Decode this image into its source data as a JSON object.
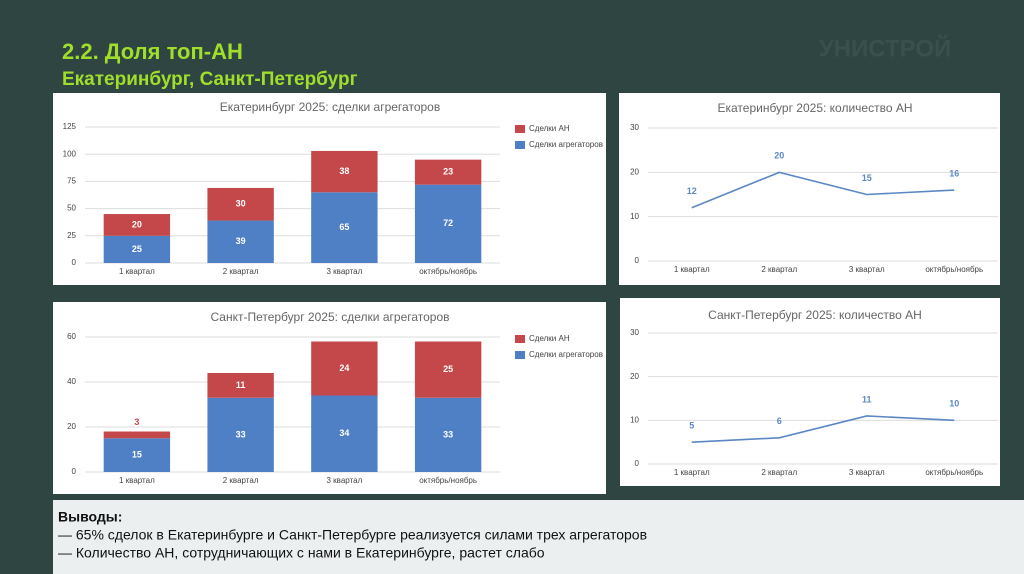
{
  "header": {
    "title": "2.2. Доля топ-АН",
    "subtitle": "Екатеринбург, Санкт-Петербург",
    "logo": "УНИСТРОЙ"
  },
  "chart_data": [
    {
      "type": "bar",
      "stacked": true,
      "title": "Екатеринбург 2025: сделки агрегаторов",
      "categories": [
        "1 квартал",
        "2 квартал",
        "3 квартал",
        "октябрь/ноябрь"
      ],
      "series": [
        {
          "name": "Сделки агрегаторов",
          "color": "#4f80c5",
          "values": [
            25,
            39,
            65,
            72
          ]
        },
        {
          "name": "Сделки АН",
          "color": "#c4484a",
          "values": [
            20,
            30,
            38,
            23
          ]
        }
      ],
      "ylim": [
        0,
        125
      ],
      "yticks": [
        0,
        25,
        50,
        75,
        100,
        125
      ],
      "grid": true,
      "legend": "right"
    },
    {
      "type": "line",
      "title": "Екатеринбург 2025: количество АН",
      "categories": [
        "1 квартал",
        "2 квартал",
        "3 квартал",
        "октябрь/ноябрь"
      ],
      "values": [
        12,
        20,
        15,
        16
      ],
      "color": "#5b87c5",
      "ylim": [
        0,
        30
      ],
      "yticks": [
        0,
        10,
        20,
        30
      ],
      "grid": true
    },
    {
      "type": "bar",
      "stacked": true,
      "title": "Санкт-Петербург 2025: сделки агрегаторов",
      "categories": [
        "1 квартал",
        "2 квартал",
        "3 квартал",
        "октябрь/ноябрь"
      ],
      "series": [
        {
          "name": "Сделки агрегаторов",
          "color": "#4f80c5",
          "values": [
            15,
            33,
            34,
            33
          ]
        },
        {
          "name": "Сделки АН",
          "color": "#c4484a",
          "values": [
            3,
            11,
            24,
            25
          ]
        }
      ],
      "ylim": [
        0,
        60
      ],
      "yticks": [
        0,
        20,
        40,
        60
      ],
      "grid": true,
      "legend": "right"
    },
    {
      "type": "line",
      "title": "Санкт-Петербург 2025: количество АН",
      "categories": [
        "1 квартал",
        "2 квартал",
        "3 квартал",
        "октябрь/ноябрь"
      ],
      "values": [
        5,
        6,
        11,
        10
      ],
      "color": "#5b87c5",
      "ylim": [
        0,
        30
      ],
      "yticks": [
        0,
        10,
        20,
        30
      ],
      "grid": true
    }
  ],
  "conclusions": {
    "heading": "Выводы:",
    "items": [
      "— 65% сделок в Екатеринбурге и Санкт-Петербурге реализуется силами трех агрегаторов",
      "— Количество АН, сотрудничающих с нами в Екатеринбурге, растет слабо"
    ]
  }
}
